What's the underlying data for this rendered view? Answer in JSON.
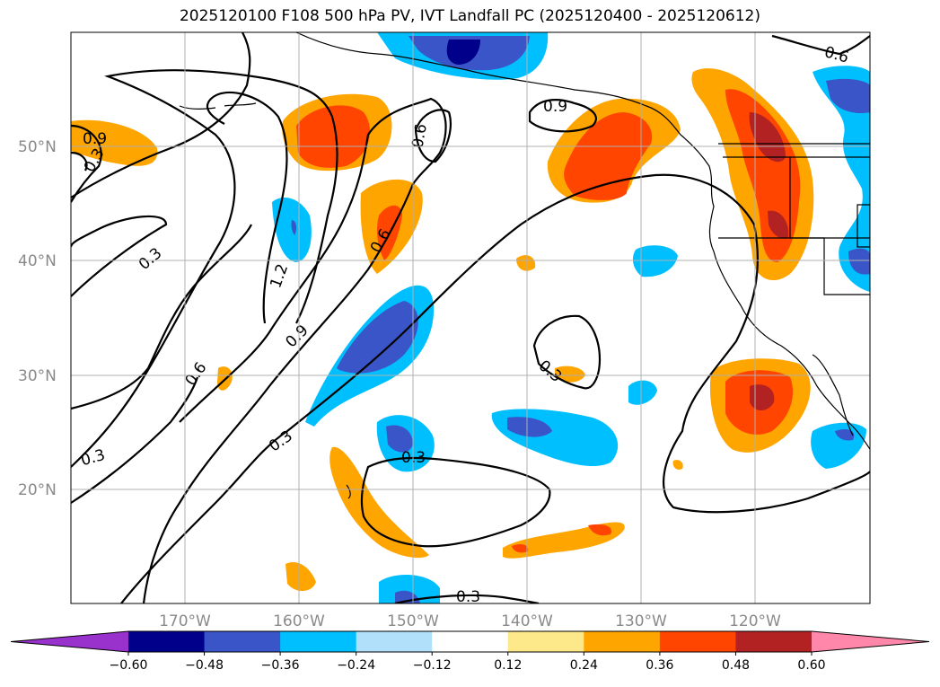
{
  "title": "2025120100 F108 500 hPa PV, IVT Landfall PC (2025120400 - 2025120612)",
  "map": {
    "lat_labels": [
      "50°N",
      "40°N",
      "30°N",
      "20°N"
    ],
    "lon_labels": [
      "170°W",
      "160°W",
      "150°W",
      "140°W",
      "130°W",
      "120°W"
    ],
    "grid": true,
    "contour_labels": [
      "0.9",
      "0.3",
      "1.2",
      "0.6",
      "0.9",
      "0.6",
      "0.9",
      "0.6",
      "0.6",
      "0.3",
      "0.3",
      "0.3",
      "0.3",
      "0.3",
      "0.3"
    ]
  },
  "colorbar": {
    "ticks": [
      "−0.60",
      "−0.48",
      "−0.36",
      "−0.24",
      "−0.12",
      "0.12",
      "0.24",
      "0.36",
      "0.48",
      "0.60"
    ],
    "colors": [
      "#9932cc",
      "#00008b",
      "#3a55c8",
      "#00bfff",
      "#b0e0fa",
      "#ffffff",
      "#fde88a",
      "#ffa500",
      "#ff4500",
      "#b22222",
      "#ff88aa"
    ]
  }
}
